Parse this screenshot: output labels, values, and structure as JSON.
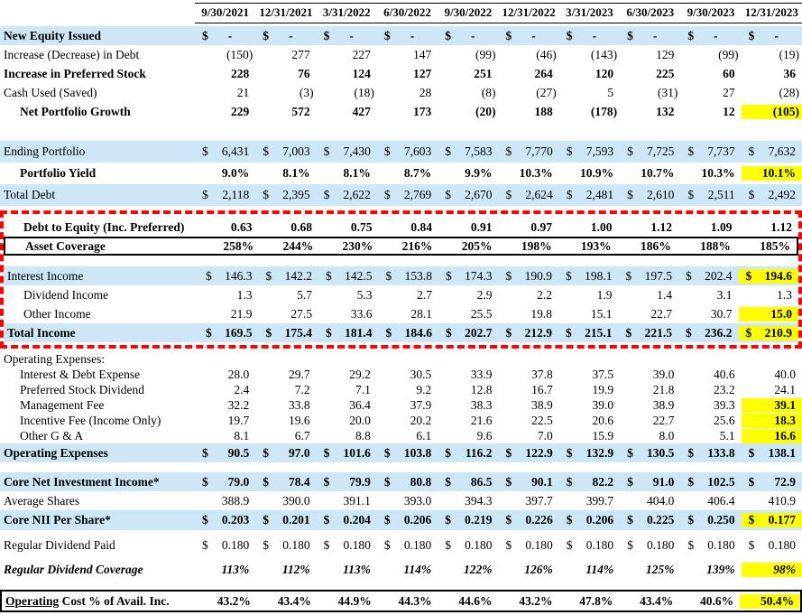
{
  "colors": {
    "row_band": "#CDE7F6",
    "highlight": "#FFFF00",
    "outline_dashed": "#FE0000",
    "outline_solid": "#000000"
  },
  "table": {
    "columns": [
      "9/30/2021",
      "12/31/2021",
      "3/31/2022",
      "6/30/2022",
      "9/30/2022",
      "12/31/2022",
      "3/31/2023",
      "6/30/2023",
      "9/30/2023",
      "12/31/2023"
    ],
    "rows": {
      "growth": [
        {
          "label": "New Equity Issued",
          "bg": "blue",
          "bold": true,
          "dollar": true,
          "values": [
            "-",
            "-",
            "-",
            "-",
            "-",
            "-",
            "-",
            "-",
            "-",
            "-"
          ]
        },
        {
          "label": "Increase (Decrease) in Debt",
          "values": [
            "(150)",
            "277",
            "227",
            "147",
            "(99)",
            "(46)",
            "(143)",
            "129",
            "(99)",
            "(19)"
          ]
        },
        {
          "label": "Increase in Preferred Stock",
          "bold": true,
          "values": [
            "228",
            "76",
            "124",
            "127",
            "251",
            "264",
            "120",
            "225",
            "60",
            "36"
          ]
        },
        {
          "label": "Cash Used (Saved)",
          "values": [
            "21",
            "(3)",
            "(18)",
            "28",
            "(8)",
            "(27)",
            "5",
            "(31)",
            "27",
            "(28)"
          ]
        },
        {
          "label": "Net Portfolio Growth",
          "bold": true,
          "indent": true,
          "hl": true,
          "values": [
            "229",
            "572",
            "427",
            "173",
            "(20)",
            "188",
            "(178)",
            "132",
            "12",
            "(105)"
          ]
        }
      ],
      "portfolio": [
        {
          "label": "Ending Portfolio",
          "bg": "blue",
          "dollar": true,
          "values": [
            "6,431",
            "7,003",
            "7,430",
            "7,603",
            "7,583",
            "7,770",
            "7,593",
            "7,725",
            "7,737",
            "7,632"
          ]
        },
        {
          "label": "Portfolio Yield",
          "bold": true,
          "indent": true,
          "hl": true,
          "values": [
            "9.0%",
            "8.1%",
            "8.1%",
            "8.7%",
            "9.9%",
            "10.3%",
            "10.9%",
            "10.7%",
            "10.3%",
            "10.1%"
          ]
        },
        {
          "label": "Total Debt",
          "bg": "blue",
          "dollar": true,
          "values": [
            "2,118",
            "2,395",
            "2,622",
            "2,769",
            "2,670",
            "2,624",
            "2,481",
            "2,610",
            "2,511",
            "2,492"
          ]
        }
      ],
      "leverage_income": [
        {
          "label": "Debt to Equity (Inc. Preferred)",
          "bold": true,
          "indent": true,
          "values": [
            "0.63",
            "0.68",
            "0.75",
            "0.84",
            "0.91",
            "0.97",
            "1.00",
            "1.12",
            "1.09",
            "1.12"
          ]
        },
        {
          "label": "Asset Coverage",
          "bold": true,
          "indent": true,
          "box": true,
          "values": [
            "258%",
            "244%",
            "230%",
            "216%",
            "205%",
            "198%",
            "193%",
            "186%",
            "188%",
            "185%"
          ]
        },
        {
          "label": "Interest Income",
          "bg": "blue",
          "dollar": true,
          "hl": true,
          "values": [
            "146.3",
            "142.2",
            "142.5",
            "153.8",
            "174.3",
            "190.9",
            "198.1",
            "197.5",
            "202.4",
            "194.6"
          ]
        },
        {
          "label": "Dividend Income",
          "indent": true,
          "values": [
            "1.3",
            "5.7",
            "5.3",
            "2.7",
            "2.9",
            "2.2",
            "1.9",
            "1.4",
            "3.1",
            "1.3"
          ]
        },
        {
          "label": "Other Income",
          "indent": true,
          "hl": true,
          "values": [
            "21.9",
            "27.5",
            "33.6",
            "28.1",
            "25.5",
            "19.8",
            "15.1",
            "22.7",
            "30.7",
            "15.0"
          ]
        },
        {
          "label": "Total Income",
          "bg": "blue",
          "bold": true,
          "dollar": true,
          "hl": true,
          "values": [
            "169.5",
            "175.4",
            "181.4",
            "184.6",
            "202.7",
            "212.9",
            "215.1",
            "221.5",
            "236.2",
            "210.9"
          ]
        }
      ],
      "expenses": [
        {
          "label": "Operating Expenses:"
        },
        {
          "label": "Interest & Debt Expense",
          "indent": true,
          "values": [
            "28.0",
            "29.7",
            "29.2",
            "30.5",
            "33.9",
            "37.8",
            "37.5",
            "39.0",
            "40.6",
            "40.0"
          ]
        },
        {
          "label": "Preferred Stock Dividend",
          "indent": true,
          "values": [
            "2.4",
            "7.2",
            "7.1",
            "9.2",
            "12.8",
            "16.7",
            "19.9",
            "21.8",
            "23.2",
            "24.1"
          ]
        },
        {
          "label": "Management Fee",
          "indent": true,
          "hl": true,
          "values": [
            "32.2",
            "33.8",
            "36.4",
            "37.9",
            "38.3",
            "38.9",
            "39.0",
            "38.9",
            "39.3",
            "39.1"
          ]
        },
        {
          "label": "Incentive Fee (Income Only)",
          "indent": true,
          "hl": true,
          "values": [
            "19.7",
            "19.6",
            "20.0",
            "20.2",
            "21.6",
            "22.5",
            "20.6",
            "22.7",
            "25.6",
            "18.3"
          ]
        },
        {
          "label": "Other G & A",
          "indent": true,
          "hl": true,
          "values": [
            "8.1",
            "6.7",
            "8.8",
            "6.1",
            "9.6",
            "7.0",
            "15.9",
            "8.0",
            "5.1",
            "16.6"
          ]
        },
        {
          "label": "Operating Expenses",
          "bg": "blue",
          "bold": true,
          "dollar": true,
          "values": [
            "90.5",
            "97.0",
            "101.6",
            "103.8",
            "116.2",
            "122.9",
            "132.9",
            "130.5",
            "133.8",
            "138.1"
          ]
        }
      ],
      "core": [
        {
          "label": "Core Net Investment Income*",
          "bg": "blue",
          "bold": true,
          "dollar": true,
          "values": [
            "79.0",
            "78.4",
            "79.9",
            "80.8",
            "86.5",
            "90.1",
            "82.2",
            "91.0",
            "102.5",
            "72.9"
          ]
        },
        {
          "label": "Average Shares",
          "values": [
            "388.9",
            "390.0",
            "391.1",
            "393.0",
            "394.3",
            "397.7",
            "399.7",
            "404.0",
            "406.4",
            "410.9"
          ]
        },
        {
          "label": "Core NII Per Share*",
          "bg": "blue",
          "bold": true,
          "dollar": true,
          "hl": true,
          "values": [
            "0.203",
            "0.201",
            "0.204",
            "0.206",
            "0.219",
            "0.226",
            "0.206",
            "0.225",
            "0.250",
            "0.177"
          ]
        }
      ],
      "dividend": [
        {
          "label": "Regular Dividend Paid",
          "dollar": true,
          "values": [
            "0.180",
            "0.180",
            "0.180",
            "0.180",
            "0.180",
            "0.180",
            "0.180",
            "0.180",
            "0.180",
            "0.180"
          ]
        }
      ],
      "coverage": [
        {
          "label": "Regular Dividend Coverage",
          "bold": true,
          "italic": true,
          "hl": true,
          "values": [
            "113%",
            "112%",
            "113%",
            "114%",
            "122%",
            "126%",
            "114%",
            "125%",
            "139%",
            "98%"
          ]
        }
      ],
      "cost": [
        {
          "label_u": "Operating",
          "label_rest": " Cost % of Avail. Inc.",
          "bold": true,
          "box": true,
          "hl": true,
          "values": [
            "43.2%",
            "43.4%",
            "44.9%",
            "44.3%",
            "44.6%",
            "43.2%",
            "47.8%",
            "43.4%",
            "40.6%",
            "50.4%"
          ]
        }
      ]
    }
  }
}
